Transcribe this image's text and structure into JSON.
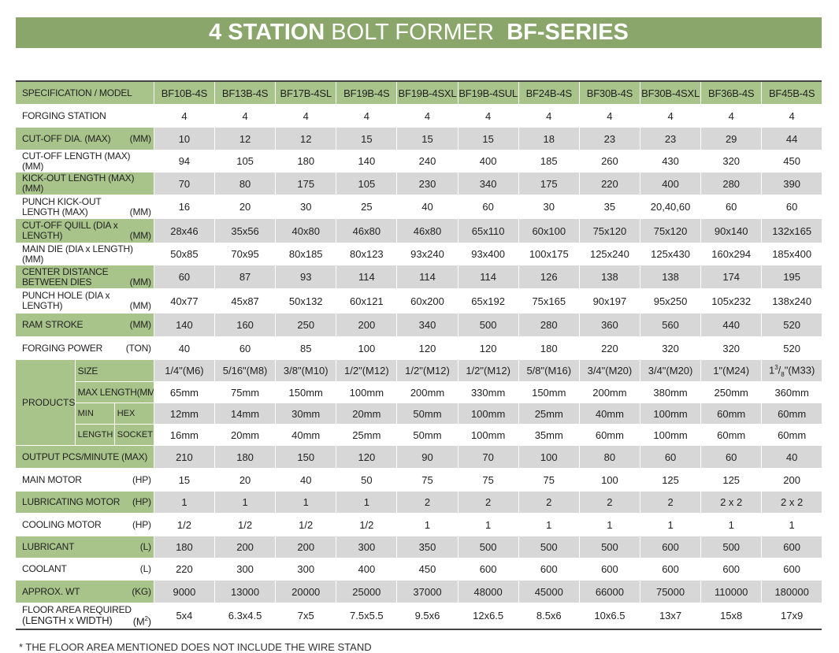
{
  "banner": {
    "part1": "4 STATION",
    "part2": " BOLT FORMER  ",
    "part3": "BF-SERIES"
  },
  "header": {
    "label": "SPECIFICATION  /  MODEL",
    "models": [
      "BF10B-4S",
      "BF13B-4S",
      "BF17B-4SL",
      "BF19B-4S",
      "BF19B-4SXL",
      "BF19B-4SUL",
      "BF24B-4S",
      "BF30B-4S",
      "BF30B-4SXL",
      "BF36B-4S",
      "BF45B-4S"
    ]
  },
  "rows_top": [
    {
      "label": "FORGING STATION",
      "unit": "",
      "values": [
        "4",
        "4",
        "4",
        "4",
        "4",
        "4",
        "4",
        "4",
        "4",
        "4",
        "4"
      ]
    },
    {
      "label": "CUT-OFF DIA. (MAX)",
      "unit": "(MM)",
      "values": [
        "10",
        "12",
        "12",
        "15",
        "15",
        "15",
        "18",
        "23",
        "23",
        "29",
        "44"
      ]
    },
    {
      "label": "CUT-OFF LENGTH (MAX)(MM)",
      "unit": "",
      "values": [
        "94",
        "105",
        "180",
        "140",
        "240",
        "400",
        "185",
        "260",
        "430",
        "320",
        "450"
      ]
    },
    {
      "label": "KICK-OUT LENGTH (MAX)(MM)",
      "unit": "",
      "values": [
        "70",
        "80",
        "175",
        "105",
        "230",
        "340",
        "175",
        "220",
        "400",
        "280",
        "390"
      ]
    },
    {
      "label": "PUNCH KICK-OUT LENGTH (MAX)",
      "unit": "(MM)",
      "values": [
        "16",
        "20",
        "30",
        "25",
        "40",
        "60",
        "30",
        "35",
        "20,40,60",
        "60",
        "60"
      ]
    },
    {
      "label": "CUT-OFF QUILL (DIA x LENGTH)",
      "unit": "(MM)",
      "values": [
        "28x46",
        "35x56",
        "40x80",
        "46x80",
        "46x80",
        "65x110",
        "60x100",
        "75x120",
        "75x120",
        "90x140",
        "132x165"
      ]
    },
    {
      "label": "MAIN DIE (DIA x LENGTH)(MM)",
      "unit": "",
      "values": [
        "50x85",
        "70x95",
        "80x185",
        "80x123",
        "93x240",
        "93x400",
        "100x175",
        "125x240",
        "125x430",
        "160x294",
        "185x400"
      ]
    },
    {
      "label": "CENTER DISTANCE BETWEEN DIES",
      "unit": "(MM)",
      "values": [
        "60",
        "87",
        "93",
        "114",
        "114",
        "114",
        "126",
        "138",
        "138",
        "174",
        "195"
      ]
    },
    {
      "label": "PUNCH HOLE (DIA x LENGTH)",
      "unit": "(MM)",
      "values": [
        "40x77",
        "45x87",
        "50x132",
        "60x121",
        "60x200",
        "65x192",
        "75x165",
        "90x197",
        "95x250",
        "105x232",
        "138x240"
      ]
    },
    {
      "label": "RAM STROKE",
      "unit": "(MM)",
      "values": [
        "140",
        "160",
        "250",
        "200",
        "340",
        "500",
        "280",
        "360",
        "560",
        "440",
        "520"
      ]
    },
    {
      "label": "FORGING POWER",
      "unit": "(TON)",
      "values": [
        "40",
        "60",
        "85",
        "100",
        "120",
        "120",
        "180",
        "220",
        "320",
        "320",
        "520"
      ]
    }
  ],
  "products": {
    "label": "PRODUCTS",
    "size_label": "SIZE",
    "size_values": [
      "1/4\"(M6)",
      "5/16\"(M8)",
      "3/8\"(M10)",
      "1/2\"(M12)",
      "1/2\"(M12)",
      "1/2\"(M12)",
      "5/8\"(M16)",
      "3/4\"(M20)",
      "3/4\"(M20)",
      "1\"(M24)"
    ],
    "size_last": {
      "whole": "1",
      "num": "3",
      "den": "8",
      "rest": "\"(M33)"
    },
    "maxlen_label": "MAX LENGTH(MM)",
    "maxlen_values": [
      "65mm",
      "75mm",
      "150mm",
      "100mm",
      "200mm",
      "330mm",
      "150mm",
      "200mm",
      "380mm",
      "250mm",
      "360mm"
    ],
    "min_label": "MIN",
    "length_label": "LENGTH",
    "hex_label": "HEX",
    "socket_label": "SOCKET",
    "hex_values": [
      "12mm",
      "14mm",
      "30mm",
      "20mm",
      "50mm",
      "100mm",
      "25mm",
      "40mm",
      "100mm",
      "60mm",
      "60mm"
    ],
    "socket_values": [
      "16mm",
      "20mm",
      "40mm",
      "25mm",
      "50mm",
      "100mm",
      "35mm",
      "60mm",
      "100mm",
      "60mm",
      "60mm"
    ]
  },
  "rows_bottom": [
    {
      "label": "OUTPUT  PCS/MINUTE  (MAX)",
      "unit": "",
      "values": [
        "210",
        "180",
        "150",
        "120",
        "90",
        "70",
        "100",
        "80",
        "60",
        "60",
        "40"
      ]
    },
    {
      "label": "MAIN MOTOR",
      "unit": "(HP)",
      "values": [
        "15",
        "20",
        "40",
        "50",
        "75",
        "75",
        "75",
        "100",
        "125",
        "125",
        "200"
      ]
    },
    {
      "label": "LUBRICATING MOTOR",
      "unit": "(HP)",
      "values": [
        "1",
        "1",
        "1",
        "1",
        "2",
        "2",
        "2",
        "2",
        "2",
        "2 x 2",
        "2 x 2"
      ]
    },
    {
      "label": "COOLING MOTOR",
      "unit": "(HP)",
      "values": [
        "1/2",
        "1/2",
        "1/2",
        "1/2",
        "1",
        "1",
        "1",
        "1",
        "1",
        "1",
        "1"
      ]
    },
    {
      "label": "LUBRICANT",
      "unit": "(L)",
      "values": [
        "180",
        "200",
        "200",
        "300",
        "350",
        "500",
        "500",
        "500",
        "600",
        "500",
        "600"
      ]
    },
    {
      "label": "COOLANT",
      "unit": "(L)",
      "values": [
        "220",
        "300",
        "300",
        "400",
        "450",
        "600",
        "600",
        "600",
        "600",
        "600",
        "600"
      ]
    },
    {
      "label": "APPROX. WT",
      "unit": "(KG)",
      "values": [
        "9000",
        "13000",
        "20000",
        "25000",
        "37000",
        "48000",
        "45000",
        "66000",
        "75000",
        "110000",
        "180000"
      ]
    }
  ],
  "floor": {
    "line1": "FLOOR AREA REQUIRED",
    "line2": "(LENGTH x WIDTH)",
    "unit_base": "(M",
    "unit_sup": "2",
    "unit_end": ")",
    "values": [
      "5x4",
      "6.3x4.5",
      "7x5",
      "7.5x5.5",
      "9.5x6",
      "12x6.5",
      "8.5x6",
      "10x6.5",
      "13x7",
      "15x8",
      "17x9"
    ]
  },
  "footnote": "* THE FLOOR AREA MENTIONED DOES NOT INCLUDE THE WIRE STAND"
}
